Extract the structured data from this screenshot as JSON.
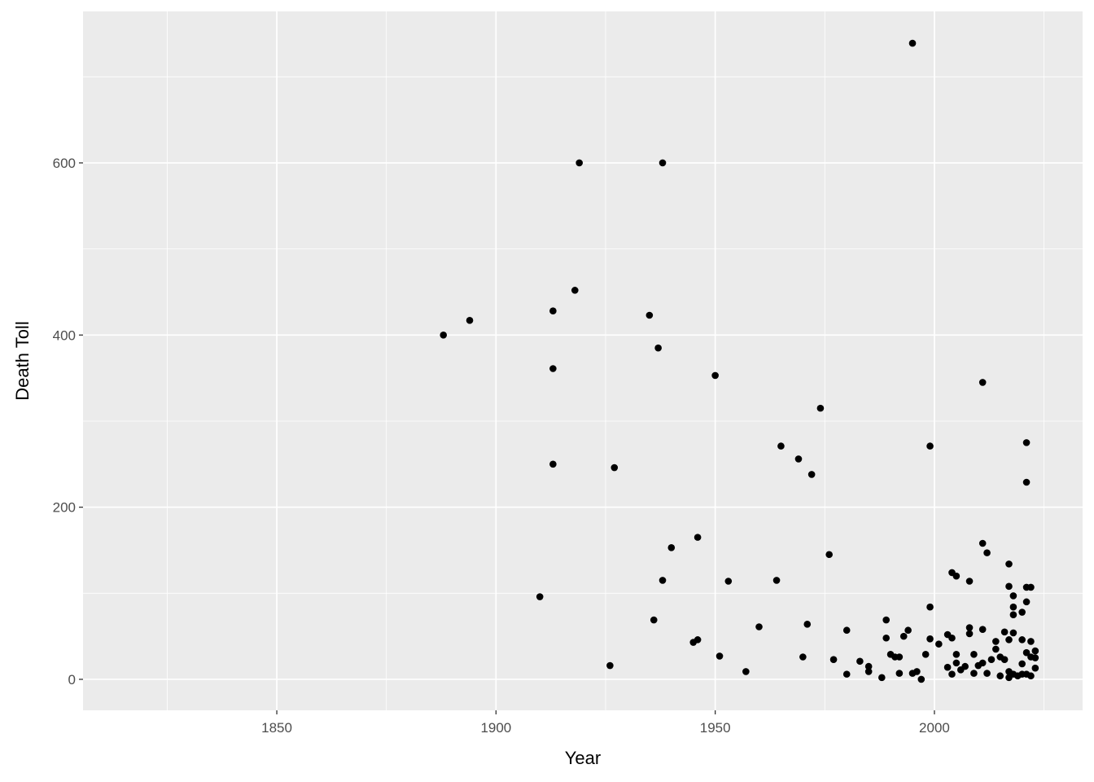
{
  "chart_data": {
    "type": "scatter",
    "x_label": "Year",
    "y_label": "Death Toll",
    "xlim": [
      1805.8,
      2033.8
    ],
    "ylim": [
      -36,
      776
    ],
    "xticks": [
      1850,
      1900,
      1950,
      2000
    ],
    "yticks": [
      0,
      200,
      400,
      600
    ],
    "grid": true,
    "color": "#000000",
    "x": [
      1888,
      1894,
      1919,
      1938,
      1918,
      1913,
      1913,
      1913,
      1910,
      1935,
      1937,
      1927,
      1926,
      1950,
      1995,
      1974,
      1965,
      1969,
      1972,
      1976,
      1999,
      2011,
      2021,
      2021,
      1940,
      1946,
      1938,
      1936,
      1945,
      1946,
      1951,
      1953,
      1957,
      1960,
      1964,
      1970,
      1971,
      1977,
      1980,
      1980,
      1983,
      1985,
      1985,
      1988,
      1989,
      1989,
      1990,
      1991,
      1992,
      1992,
      1993,
      1994,
      1995,
      1996,
      1997,
      1998,
      1999,
      1999,
      2001,
      2003,
      2004,
      2004,
      2005,
      2003,
      2004,
      2005,
      2005,
      2006,
      2007,
      2008,
      2008,
      2008,
      2009,
      2009,
      2010,
      2011,
      2011,
      2011,
      2012,
      2012,
      2013,
      2014,
      2014,
      2015,
      2015,
      2016,
      2016,
      2017,
      2017,
      2017,
      2017,
      2017,
      2018,
      2018,
      2018,
      2018,
      2018,
      2019,
      2020,
      2020,
      2020,
      2020,
      2021,
      2021,
      2021,
      2021,
      2022,
      2022,
      2022,
      2022,
      2023,
      2023,
      2023
    ],
    "values": [
      400,
      417,
      600,
      600,
      452,
      428,
      361,
      250,
      96,
      423,
      385,
      246,
      16,
      353,
      739,
      315,
      271,
      256,
      238,
      145,
      271,
      345,
      275,
      229,
      153,
      165,
      115,
      69,
      43,
      46,
      27,
      114,
      9,
      61,
      115,
      26,
      64,
      23,
      57,
      6,
      21,
      15,
      9,
      2,
      69,
      48,
      29,
      26,
      26,
      7,
      50,
      57,
      7,
      9,
      0,
      29,
      84,
      47,
      41,
      52,
      48,
      124,
      120,
      14,
      6,
      29,
      19,
      11,
      15,
      114,
      60,
      53,
      29,
      7,
      16,
      158,
      58,
      19,
      147,
      7,
      23,
      35,
      44,
      26,
      4,
      55,
      23,
      134,
      108,
      46,
      9,
      2,
      97,
      84,
      75,
      54,
      6,
      4,
      78,
      46,
      18,
      6,
      90,
      107,
      31,
      6,
      107,
      44,
      26,
      4,
      33,
      13,
      25
    ]
  }
}
